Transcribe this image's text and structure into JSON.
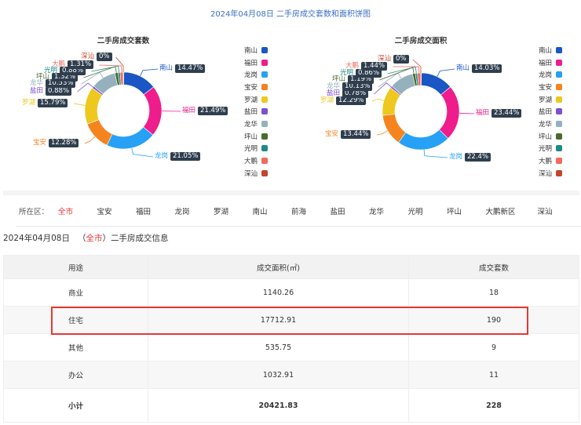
{
  "title": "2024年04月08日 二手房成交套数和面积饼图",
  "chart_data": [
    {
      "type": "pie",
      "title": "二手房成交套数",
      "categories": [
        "南山",
        "福田",
        "龙岗",
        "宝安",
        "罗湖",
        "盐田",
        "龙华",
        "坪山",
        "光明",
        "大鹏",
        "深汕"
      ],
      "values": [
        14.47,
        21.49,
        21.05,
        12.28,
        15.79,
        0.88,
        10.53,
        1.32,
        0.88,
        1.31,
        0
      ],
      "labels": [
        "14.47%",
        "21.49%",
        "21.05%",
        "12.28%",
        "15.79%",
        "0.88%",
        "10.53%",
        "1.32%",
        "0.88%",
        "1.31%",
        "0%"
      ],
      "colors": [
        "#1a56c4",
        "#ef1c8c",
        "#26a1f5",
        "#f5841f",
        "#eec81c",
        "#7b4fd6",
        "#94b1bd",
        "#4a6b2b",
        "#1e8a86",
        "#f26a5c",
        "#c2462c"
      ],
      "legend": "right"
    },
    {
      "type": "pie",
      "title": "二手房成交面积",
      "categories": [
        "南山",
        "福田",
        "龙岗",
        "宝安",
        "罗湖",
        "盐田",
        "龙华",
        "坪山",
        "光明",
        "大鹏",
        "深汕"
      ],
      "values": [
        14.03,
        23.44,
        22.4,
        13.44,
        12.29,
        0.78,
        10.13,
        1.19,
        0.86,
        1.44,
        0
      ],
      "labels": [
        "14.03%",
        "23.44%",
        "22.4%",
        "13.44%",
        "12.29%",
        "0.78%",
        "10.13%",
        "1.19%",
        "0.86%",
        "1.44%",
        "0%"
      ],
      "colors": [
        "#1a56c4",
        "#ef1c8c",
        "#26a1f5",
        "#f5841f",
        "#eec81c",
        "#7b4fd6",
        "#94b1bd",
        "#4a6b2b",
        "#1e8a86",
        "#f26a5c",
        "#c2462c"
      ],
      "legend": "right"
    }
  ],
  "filter": {
    "label": "所在区：",
    "active_color": "#e53935",
    "items": [
      "全市",
      "宝安",
      "福田",
      "龙岗",
      "罗湖",
      "南山",
      "前海",
      "盐田",
      "龙华",
      "光明",
      "坪山",
      "大鹏新区",
      "深汕"
    ]
  },
  "info": {
    "date": "2024年04月08日",
    "open": "（",
    "scope": "全市",
    "close": "）",
    "suffix": "二手房成交信息"
  },
  "table": {
    "headers": [
      "用途",
      "成交面积(㎡)",
      "成交套数"
    ],
    "rows": [
      [
        "商业",
        "1140.26",
        "18"
      ],
      [
        "住宅",
        "17712.91",
        "190"
      ],
      [
        "其他",
        "535.75",
        "9"
      ],
      [
        "办公",
        "1032.91",
        "11"
      ],
      [
        "小计",
        "20421.83",
        "228"
      ]
    ]
  }
}
